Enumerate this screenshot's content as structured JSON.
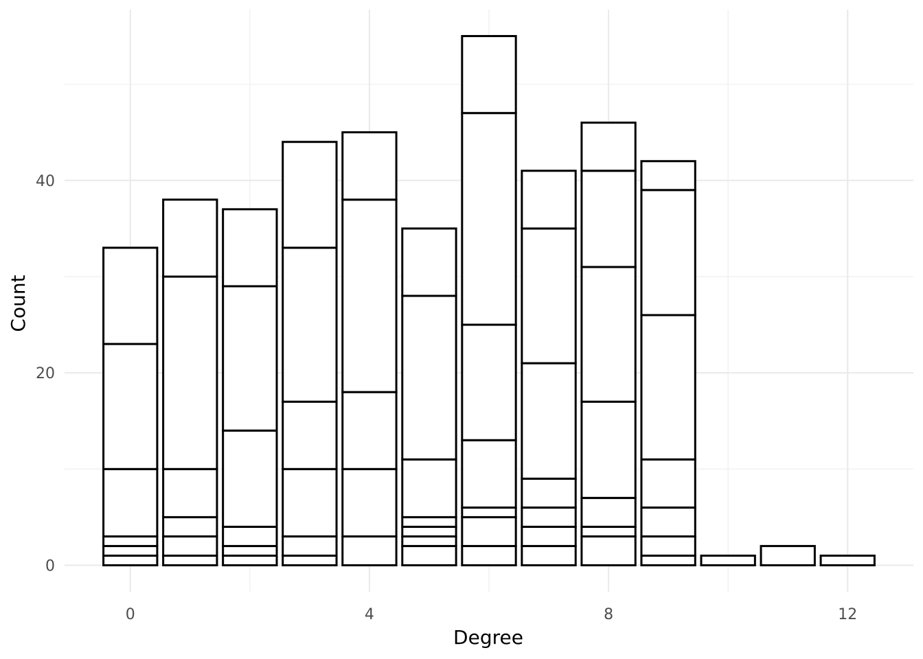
{
  "chart_data": {
    "type": "bar",
    "stacked": true,
    "xlabel": "Degree",
    "ylabel": "Count",
    "xlim": [
      -1.1,
      13.1
    ],
    "ylim": [
      -2.75,
      57.75
    ],
    "x_ticks": [
      0,
      4,
      8,
      12
    ],
    "y_ticks": [
      0,
      20,
      40
    ],
    "grid": true,
    "bar_fill": "#ffffff",
    "bar_outline": "#000000",
    "bars": [
      {
        "x": 0,
        "total": 33,
        "segment_boundaries": [
          1,
          2,
          3,
          10,
          23,
          33
        ]
      },
      {
        "x": 1,
        "total": 38,
        "segment_boundaries": [
          1,
          3,
          5,
          10,
          30,
          38
        ]
      },
      {
        "x": 2,
        "total": 37,
        "segment_boundaries": [
          1,
          2,
          4,
          14,
          29,
          37
        ]
      },
      {
        "x": 3,
        "total": 44,
        "segment_boundaries": [
          1,
          3,
          10,
          17,
          33,
          44
        ]
      },
      {
        "x": 4,
        "total": 45,
        "segment_boundaries": [
          3,
          10,
          18,
          38,
          45
        ]
      },
      {
        "x": 5,
        "total": 35,
        "segment_boundaries": [
          2,
          3,
          4,
          5,
          11,
          28,
          35
        ]
      },
      {
        "x": 6,
        "total": 55,
        "segment_boundaries": [
          2,
          5,
          6,
          13,
          25,
          47,
          55
        ]
      },
      {
        "x": 7,
        "total": 41,
        "segment_boundaries": [
          2,
          4,
          6,
          9,
          21,
          35,
          41
        ]
      },
      {
        "x": 8,
        "total": 46,
        "segment_boundaries": [
          3,
          4,
          7,
          17,
          31,
          41,
          46
        ]
      },
      {
        "x": 9,
        "total": 42,
        "segment_boundaries": [
          1,
          3,
          6,
          11,
          26,
          39,
          42
        ]
      },
      {
        "x": 10,
        "total": 1,
        "segment_boundaries": [
          1
        ]
      },
      {
        "x": 11,
        "total": 2,
        "segment_boundaries": [
          2
        ]
      },
      {
        "x": 12,
        "total": 1,
        "segment_boundaries": [
          1
        ]
      }
    ]
  }
}
